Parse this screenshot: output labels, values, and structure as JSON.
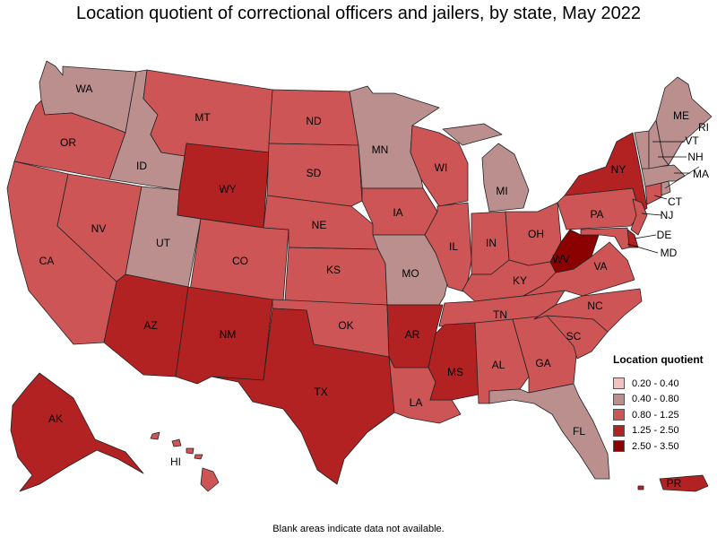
{
  "title": "Location quotient of correctional officers and jailers, by state, May 2022",
  "footnote": "Blank areas indicate data not available.",
  "legend": {
    "title": "Location quotient",
    "classes": [
      {
        "label": "0.20 - 0.40",
        "color": "#f4c0c0"
      },
      {
        "label": "0.40 - 0.80",
        "color": "#bc8f8f"
      },
      {
        "label": "0.80 - 1.25",
        "color": "#cd5555"
      },
      {
        "label": "1.25 - 2.50",
        "color": "#b22222"
      },
      {
        "label": "2.50 - 3.50",
        "color": "#8b0000"
      }
    ]
  },
  "states": {
    "WA": {
      "label": "WA",
      "class": 1
    },
    "OR": {
      "label": "OR",
      "class": 2
    },
    "CA": {
      "label": "CA",
      "class": 2
    },
    "ID": {
      "label": "ID",
      "class": 1
    },
    "NV": {
      "label": "NV",
      "class": 2
    },
    "UT": {
      "label": "UT",
      "class": 1
    },
    "AZ": {
      "label": "AZ",
      "class": 3
    },
    "MT": {
      "label": "MT",
      "class": 2
    },
    "WY": {
      "label": "WY",
      "class": 3
    },
    "CO": {
      "label": "CO",
      "class": 2
    },
    "NM": {
      "label": "NM",
      "class": 3
    },
    "ND": {
      "label": "ND",
      "class": 2
    },
    "SD": {
      "label": "SD",
      "class": 2
    },
    "NE": {
      "label": "NE",
      "class": 2
    },
    "KS": {
      "label": "KS",
      "class": 2
    },
    "OK": {
      "label": "OK",
      "class": 2
    },
    "TX": {
      "label": "TX",
      "class": 3
    },
    "MN": {
      "label": "MN",
      "class": 1
    },
    "IA": {
      "label": "IA",
      "class": 2
    },
    "MO": {
      "label": "MO",
      "class": 1
    },
    "AR": {
      "label": "AR",
      "class": 3
    },
    "LA": {
      "label": "LA",
      "class": 2
    },
    "WI": {
      "label": "WI",
      "class": 2
    },
    "IL": {
      "label": "IL",
      "class": 2
    },
    "MI": {
      "label": "MI",
      "class": 1
    },
    "IN": {
      "label": "IN",
      "class": 2
    },
    "OH": {
      "label": "OH",
      "class": 2
    },
    "KY": {
      "label": "KY",
      "class": 2
    },
    "TN": {
      "label": "TN",
      "class": 2
    },
    "MS": {
      "label": "MS",
      "class": 3
    },
    "AL": {
      "label": "AL",
      "class": 2
    },
    "GA": {
      "label": "GA",
      "class": 2
    },
    "FL": {
      "label": "FL",
      "class": 1
    },
    "SC": {
      "label": "SC",
      "class": 2
    },
    "NC": {
      "label": "NC",
      "class": 2
    },
    "VA": {
      "label": "VA",
      "class": 2
    },
    "WV": {
      "label": "WV",
      "class": 4
    },
    "PA": {
      "label": "PA",
      "class": 2
    },
    "NY": {
      "label": "NY",
      "class": 3
    },
    "NJ": {
      "label": "NJ",
      "class": 2
    },
    "DE": {
      "label": "DE",
      "class": 3
    },
    "MD": {
      "label": "MD",
      "class": 2
    },
    "CT": {
      "label": "CT",
      "class": 2
    },
    "RI": {
      "label": "RI",
      "class": 1
    },
    "MA": {
      "label": "MA",
      "class": 1
    },
    "VT": {
      "label": "VT",
      "class": 1
    },
    "NH": {
      "label": "NH",
      "class": 1
    },
    "ME": {
      "label": "ME",
      "class": 1
    },
    "AK": {
      "label": "AK",
      "class": 3
    },
    "HI": {
      "label": "HI",
      "class": 2
    },
    "PR": {
      "label": "PR",
      "class": 3
    }
  }
}
